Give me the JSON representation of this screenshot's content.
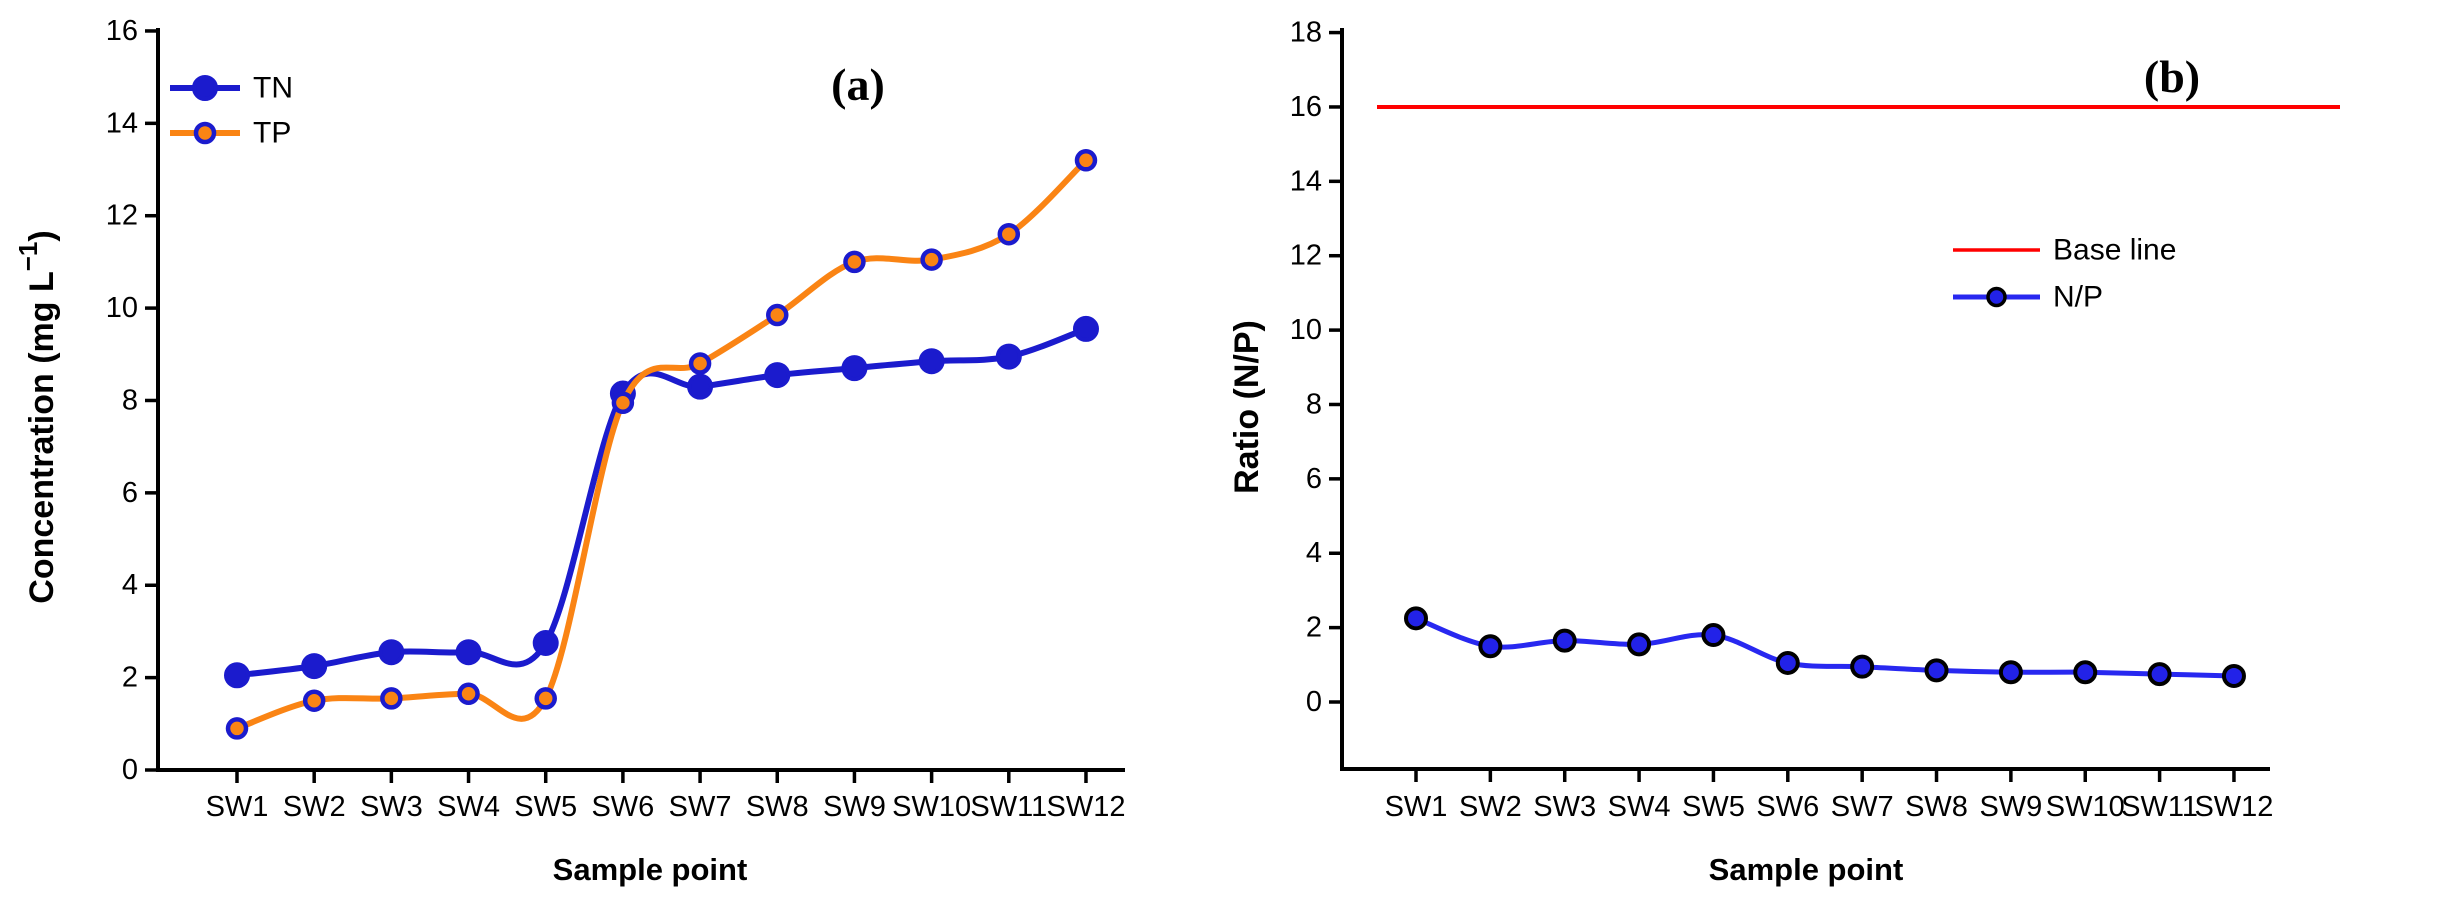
{
  "chart_data": [
    {
      "id": "a",
      "type": "line",
      "title": "(a)",
      "xlabel": "Sample point",
      "ylabel": "Concentration (mg L⁻¹)",
      "ylabel_parts": {
        "pre": "Concentration (mg L",
        "sup": "−1",
        "post": ")"
      },
      "categories": [
        "SW1",
        "SW2",
        "SW3",
        "SW4",
        "SW5",
        "SW6",
        "SW7",
        "SW8",
        "SW9",
        "SW10",
        "SW11",
        "SW12"
      ],
      "ylim": [
        0,
        16
      ],
      "ytick_step": 2,
      "grid": false,
      "legend_position": "upper-left",
      "curve_style": "smooth-spline",
      "series": [
        {
          "name": "TN",
          "values": [
            2.05,
            2.25,
            2.55,
            2.55,
            2.75,
            8.15,
            8.3,
            8.55,
            8.7,
            8.85,
            8.95,
            9.55
          ],
          "line_color": "#1b1bcd",
          "marker": "filled-circle",
          "marker_fill": "#1b1bcd",
          "marker_edge": "#1b1bcd"
        },
        {
          "name": "TP",
          "values": [
            0.9,
            1.5,
            1.55,
            1.65,
            1.55,
            7.95,
            8.8,
            9.85,
            11.0,
            11.05,
            11.6,
            13.2
          ],
          "line_color": "#fa8414",
          "marker": "ring-circle",
          "marker_fill": "#fa8414",
          "marker_edge": "#1b1bcd"
        }
      ]
    },
    {
      "id": "b",
      "type": "line",
      "title": "(b)",
      "xlabel": "Sample point",
      "ylabel": "Ratio (N/P)",
      "categories": [
        "SW1",
        "SW2",
        "SW3",
        "SW4",
        "SW5",
        "SW6",
        "SW7",
        "SW8",
        "SW9",
        "SW10",
        "SW11",
        "SW12"
      ],
      "ylim": [
        0,
        18
      ],
      "ytick_step": 2,
      "grid": false,
      "legend_position": "right",
      "curve_style": "smooth-spline",
      "baseline": {
        "label": "Base line",
        "value": 16,
        "color": "#ff0000"
      },
      "series": [
        {
          "name": "N/P",
          "values": [
            2.25,
            1.5,
            1.65,
            1.55,
            1.8,
            1.05,
            0.95,
            0.85,
            0.8,
            0.8,
            0.75,
            0.7
          ],
          "line_color": "#2828f0",
          "marker": "filled-circle",
          "marker_fill": "#2222e8",
          "marker_edge": "#000000"
        }
      ]
    }
  ]
}
